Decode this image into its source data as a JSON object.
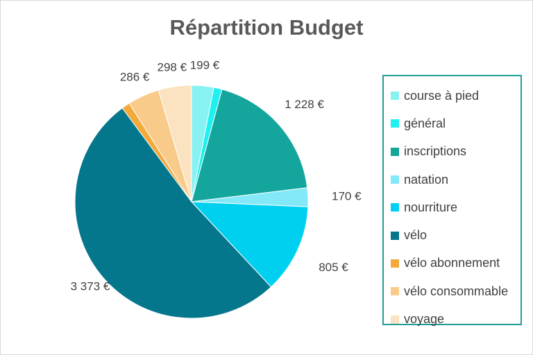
{
  "chart_data": {
    "type": "pie",
    "title": "Répartition Budget",
    "legend_position": "right",
    "categories": [
      "course à pied",
      "général",
      "inscriptions",
      "natation",
      "nourriture",
      "vélo",
      "vélo abonnement",
      "vélo consommable",
      "voyage"
    ],
    "values": [
      199,
      75,
      1228,
      170,
      805,
      3373,
      75,
      286,
      298
    ],
    "data_labels": [
      "199 €",
      "",
      "1 228 €",
      "170 €",
      "805 €",
      "3 373 €",
      "",
      "286 €",
      "298 €"
    ],
    "colors": [
      "#88f2f2",
      "#1ff0f0",
      "#14a69c",
      "#83e8f7",
      "#00d0f0",
      "#04778c",
      "#f4a93b",
      "#f9cb8b",
      "#fbe2c1"
    ]
  }
}
